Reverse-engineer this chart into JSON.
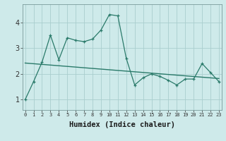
{
  "xlabel": "Humidex (Indice chaleur)",
  "x": [
    0,
    1,
    2,
    3,
    4,
    5,
    6,
    7,
    8,
    9,
    10,
    11,
    12,
    13,
    14,
    15,
    16,
    17,
    18,
    19,
    20,
    21,
    22,
    23
  ],
  "y_line": [
    1.0,
    1.7,
    2.45,
    3.5,
    2.55,
    3.4,
    3.3,
    3.25,
    3.35,
    3.7,
    4.3,
    4.25,
    2.6,
    1.57,
    1.85,
    2.0,
    1.9,
    1.75,
    1.57,
    1.8,
    1.8,
    2.4,
    2.05,
    1.7
  ],
  "trend_x": [
    0,
    23
  ],
  "trend_y": [
    2.42,
    1.82
  ],
  "line_color": "#2a7a6a",
  "bg_color": "#ceeaea",
  "grid_color": "#aacece",
  "ylim": [
    0.6,
    4.7
  ],
  "xlim": [
    -0.3,
    23.3
  ],
  "yticks": [
    1,
    2,
    3,
    4
  ],
  "xticks": [
    0,
    1,
    2,
    3,
    4,
    5,
    6,
    7,
    8,
    9,
    10,
    11,
    12,
    13,
    14,
    15,
    16,
    17,
    18,
    19,
    20,
    21,
    22,
    23
  ],
  "xlabel_fontsize": 7.5,
  "ytick_fontsize": 7,
  "xtick_fontsize": 5.0
}
